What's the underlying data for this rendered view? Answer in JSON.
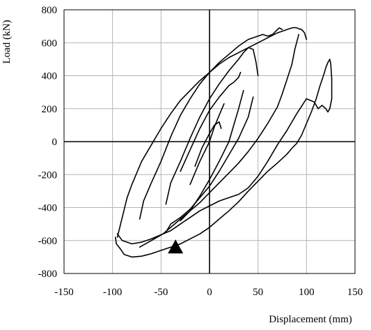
{
  "chart_data": {
    "type": "line",
    "xlabel": "Displacement (mm)",
    "ylabel": "Load (kN)",
    "xlim": [
      -150,
      150
    ],
    "ylim": [
      -800,
      800
    ],
    "x_ticks": [
      -150,
      -100,
      -50,
      0,
      50,
      100,
      150
    ],
    "y_ticks": [
      -800,
      -600,
      -400,
      -200,
      0,
      200,
      400,
      600,
      800
    ],
    "x_tick_labels": [
      "-150",
      "-100",
      "-50",
      "0",
      "50",
      "100",
      "150"
    ],
    "y_tick_labels": [
      "-800",
      "-600",
      "-400",
      "-200",
      "0",
      "200",
      "400",
      "600",
      "800"
    ],
    "grid": true,
    "line_color": "#000000",
    "series": [
      {
        "x": [
          -97,
          -96,
          -92,
          -88,
          -80,
          -70,
          -60,
          -50,
          -40,
          -30,
          -20,
          -10,
          0,
          10,
          20,
          30,
          40,
          50,
          60,
          70,
          80,
          85,
          90,
          95,
          100,
          105,
          110,
          114,
          118,
          120,
          122,
          124,
          125,
          126,
          126,
          124,
          122,
          120,
          116,
          112,
          108,
          104,
          100,
          90,
          80,
          70,
          60,
          50,
          40,
          30,
          20,
          10,
          0,
          -10,
          -20,
          -30,
          -40,
          -50,
          -60,
          -70,
          -80,
          -90,
          -95
        ],
        "y": [
          -580,
          -620,
          -650,
          -685,
          -700,
          -695,
          -680,
          -660,
          -640,
          -620,
          -590,
          -560,
          -520,
          -470,
          -420,
          -365,
          -300,
          -240,
          -180,
          -130,
          -75,
          -40,
          -10,
          40,
          110,
          180,
          260,
          340,
          410,
          450,
          480,
          500,
          470,
          380,
          260,
          200,
          180,
          200,
          220,
          200,
          240,
          250,
          260,
          170,
          70,
          -20,
          -120,
          -210,
          -280,
          -320,
          -340,
          -360,
          -390,
          -420,
          -460,
          -500,
          -540,
          -565,
          -590,
          -610,
          -620,
          -600,
          -560
        ]
      },
      {
        "x": [
          -95,
          -90,
          -85,
          -80,
          -70,
          -60,
          -50,
          -40,
          -30,
          -20,
          -10,
          0,
          10,
          20,
          30,
          40,
          50,
          60,
          70,
          75,
          80,
          85,
          88,
          90,
          92,
          95,
          98,
          100
        ],
        "y": [
          -580,
          -460,
          -340,
          -260,
          -120,
          -20,
          80,
          170,
          250,
          310,
          370,
          420,
          470,
          510,
          540,
          570,
          600,
          630,
          660,
          670,
          680,
          690,
          692,
          690,
          685,
          680,
          660,
          620
        ]
      },
      {
        "x": [
          -72,
          -60,
          -48,
          -40,
          -30,
          -20,
          -10,
          0,
          10,
          20,
          30,
          40,
          50,
          60,
          70,
          75,
          80,
          85,
          88,
          92
        ],
        "y": [
          -640,
          -600,
          -560,
          -520,
          -470,
          -420,
          -370,
          -310,
          -250,
          -190,
          -130,
          -60,
          20,
          110,
          210,
          290,
          380,
          470,
          560,
          650
        ]
      },
      {
        "x": [
          -72,
          -68,
          -60,
          -50,
          -40,
          -30,
          -20,
          -10,
          0,
          10,
          20,
          30,
          40,
          50,
          55,
          60,
          65,
          70,
          72,
          75
        ],
        "y": [
          -470,
          -360,
          -250,
          -120,
          30,
          160,
          260,
          350,
          420,
          480,
          530,
          580,
          620,
          640,
          650,
          640,
          650,
          680,
          690,
          680
        ]
      },
      {
        "x": [
          -45,
          -40,
          -30,
          -20,
          -10,
          0,
          10,
          20,
          30,
          40,
          45
        ],
        "y": [
          -550,
          -500,
          -460,
          -410,
          -340,
          -270,
          -180,
          -80,
          20,
          150,
          270
        ]
      },
      {
        "x": [
          -45,
          -40,
          -30,
          -20,
          -10,
          0,
          10,
          20,
          30,
          35,
          40,
          45,
          48,
          50
        ],
        "y": [
          -380,
          -250,
          -120,
          20,
          150,
          260,
          350,
          430,
          500,
          540,
          570,
          560,
          480,
          400
        ]
      },
      {
        "x": [
          -30,
          -20,
          -10,
          0,
          10,
          20,
          25,
          30,
          35
        ],
        "y": [
          -480,
          -420,
          -330,
          -230,
          -120,
          0,
          100,
          200,
          310
        ]
      },
      {
        "x": [
          -30,
          -20,
          -10,
          0,
          10,
          20,
          25,
          30,
          32
        ],
        "y": [
          -180,
          -50,
          80,
          190,
          270,
          340,
          360,
          390,
          420
        ]
      },
      {
        "x": [
          -20,
          -10,
          0,
          5,
          10,
          15
        ],
        "y": [
          -260,
          -120,
          0,
          90,
          160,
          230
        ]
      },
      {
        "x": [
          -15,
          -8,
          0,
          5,
          10,
          12
        ],
        "y": [
          -150,
          -40,
          50,
          100,
          120,
          80
        ]
      }
    ],
    "marker": {
      "shape": "triangle",
      "x": -35,
      "y": -640,
      "color": "#000000"
    }
  }
}
